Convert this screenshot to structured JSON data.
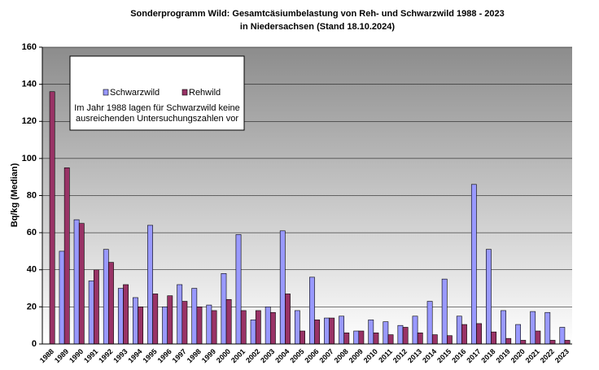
{
  "chart_data": {
    "type": "bar",
    "title": "Sonderprogramm Wild: Gesamtcäsiumbelastung von Reh- und Schwarzwild 1988 - 2023",
    "subtitle": "in Niedersachsen (Stand  18.10.2024)",
    "y_label": "Bq/kg (Median)",
    "annotation": [
      "Im Jahr 1988 lagen für Schwarzwild keine",
      "ausreichenden Untersuchungszahlen  vor"
    ],
    "categories": [
      "1988",
      "1989",
      "1990",
      "1991",
      "1992",
      "1993",
      "1994",
      "1995",
      "1996",
      "1997",
      "1998",
      "1999",
      "2000",
      "2001",
      "2002",
      "2003",
      "2004",
      "2005",
      "2006",
      "2007",
      "2008",
      "2009",
      "2010",
      "2011",
      "2012",
      "2013",
      "2014",
      "2015",
      "2016",
      "2017",
      "2018",
      "2019",
      "2020",
      "2021",
      "2022",
      "2023"
    ],
    "series": [
      {
        "name": "Schwarzwild",
        "color": "#9999ff",
        "values": [
          null,
          50,
          67,
          34,
          51,
          30,
          25,
          64,
          20,
          32,
          30,
          21,
          38,
          59,
          13,
          20,
          61,
          18,
          36,
          14,
          15,
          7,
          13,
          12,
          10,
          15,
          23,
          35,
          15,
          86,
          51,
          18,
          10.5,
          17.5,
          17,
          9
        ]
      },
      {
        "name": "Rehwild",
        "color": "#993366",
        "values": [
          136,
          95,
          65,
          40,
          44,
          32,
          20,
          27,
          26,
          23,
          20,
          18,
          24,
          18,
          18,
          17,
          27,
          7,
          13,
          14,
          6,
          7,
          6,
          5,
          9,
          6,
          5,
          4.5,
          10.5,
          11,
          6.5,
          3,
          2,
          7,
          2,
          2
        ]
      }
    ],
    "ylim": [
      0,
      160
    ],
    "yticks": [
      0,
      20,
      40,
      60,
      80,
      100,
      120,
      140,
      160
    ],
    "grid": true
  }
}
